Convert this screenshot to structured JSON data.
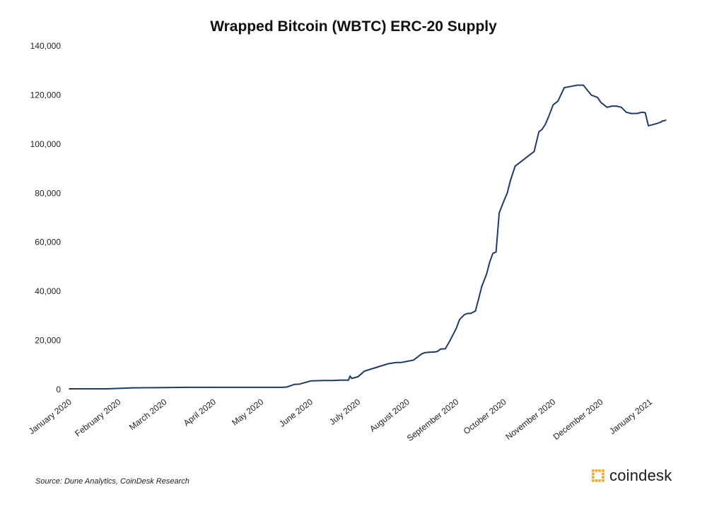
{
  "chart_data": {
    "type": "line",
    "title": "Wrapped Bitcoin (WBTC)  ERC-20 Supply",
    "xlabel": "",
    "ylabel": "",
    "ylim": [
      0,
      140000
    ],
    "yticks": [
      0,
      20000,
      40000,
      60000,
      80000,
      100000,
      120000,
      140000
    ],
    "ytick_labels": [
      "0",
      "20,000",
      "40,000",
      "60,000",
      "80,000",
      "100,000",
      "120,000",
      "140,000"
    ],
    "xticks": [
      "2020-01-01",
      "2020-02-01",
      "2020-03-01",
      "2020-04-01",
      "2020-05-01",
      "2020-06-01",
      "2020-07-01",
      "2020-08-01",
      "2020-09-01",
      "2020-10-01",
      "2020-11-01",
      "2020-12-01",
      "2021-01-01"
    ],
    "xtick_labels": [
      "January 2020",
      "February 2020",
      "March 2020",
      "April 2020",
      "May 2020",
      "June 2020",
      "July 2020",
      "August 2020",
      "September 2020",
      "October 2020",
      "November 2020",
      "December 2020",
      "January 2021"
    ],
    "xlim": [
      "2020-01-01",
      "2021-01-12"
    ],
    "legend": "none",
    "grid": false,
    "line_color": "#1f3a6b",
    "series": [
      {
        "x": [
          "2020-01-01",
          "2020-01-15",
          "2020-01-25",
          "2020-02-10",
          "2020-03-01",
          "2020-03-15",
          "2020-04-01",
          "2020-04-15",
          "2020-05-01",
          "2020-05-10",
          "2020-05-14",
          "2020-05-17",
          "2020-05-22",
          "2020-05-25",
          "2020-06-01",
          "2020-06-05",
          "2020-06-10",
          "2020-06-15",
          "2020-06-20",
          "2020-06-25",
          "2020-06-26",
          "2020-06-27",
          "2020-07-01",
          "2020-07-05",
          "2020-07-10",
          "2020-07-15",
          "2020-07-20",
          "2020-07-25",
          "2020-07-28",
          "2020-08-01",
          "2020-08-05",
          "2020-08-10",
          "2020-08-12",
          "2020-08-15",
          "2020-08-18",
          "2020-08-20",
          "2020-08-22",
          "2020-08-25",
          "2020-08-28",
          "2020-09-01",
          "2020-09-03",
          "2020-09-06",
          "2020-09-08",
          "2020-09-10",
          "2020-09-13",
          "2020-09-15",
          "2020-09-17",
          "2020-09-20",
          "2020-09-22",
          "2020-09-24",
          "2020-09-26",
          "2020-09-28",
          "2020-10-01",
          "2020-10-03",
          "2020-10-05",
          "2020-10-08",
          "2020-10-10",
          "2020-10-13",
          "2020-10-15",
          "2020-10-18",
          "2020-10-20",
          "2020-10-23",
          "2020-10-25",
          "2020-10-27",
          "2020-10-29",
          "2020-11-01",
          "2020-11-04",
          "2020-11-08",
          "2020-11-12",
          "2020-11-16",
          "2020-11-20",
          "2020-11-25",
          "2020-11-29",
          "2020-12-01",
          "2020-12-05",
          "2020-12-08",
          "2020-12-11",
          "2020-12-14",
          "2020-12-17",
          "2020-12-20",
          "2020-12-24",
          "2020-12-27",
          "2020-12-29",
          "2020-12-31",
          "2021-01-02",
          "2021-01-06",
          "2021-01-08",
          "2021-01-09",
          "2021-01-10",
          "2021-01-11"
        ],
        "values": [
          300,
          300,
          300,
          700,
          800,
          900,
          900,
          900,
          900,
          900,
          900,
          1000,
          2100,
          2200,
          3500,
          3600,
          3700,
          3700,
          3800,
          3800,
          5500,
          4500,
          5200,
          7500,
          8500,
          9500,
          10500,
          11000,
          11000,
          11500,
          12000,
          14500,
          15000,
          15200,
          15300,
          15500,
          16500,
          16600,
          20000,
          25000,
          28500,
          30500,
          31000,
          31000,
          32000,
          37000,
          42000,
          47000,
          52000,
          55500,
          56000,
          72000,
          77000,
          80000,
          85000,
          91000,
          92000,
          93500,
          94500,
          96000,
          97000,
          105000,
          106000,
          108000,
          111000,
          116000,
          117500,
          123000,
          123500,
          124000,
          124000,
          120000,
          119000,
          117000,
          115000,
          115500,
          115500,
          115000,
          113000,
          112500,
          112500,
          113000,
          112800,
          107500,
          107800,
          108500,
          109000,
          109500,
          109500,
          109800
        ]
      }
    ]
  },
  "source": "Source: Dune Analytics, CoinDesk Research",
  "brand": {
    "name": "coindesk",
    "color": "#f5a623"
  }
}
